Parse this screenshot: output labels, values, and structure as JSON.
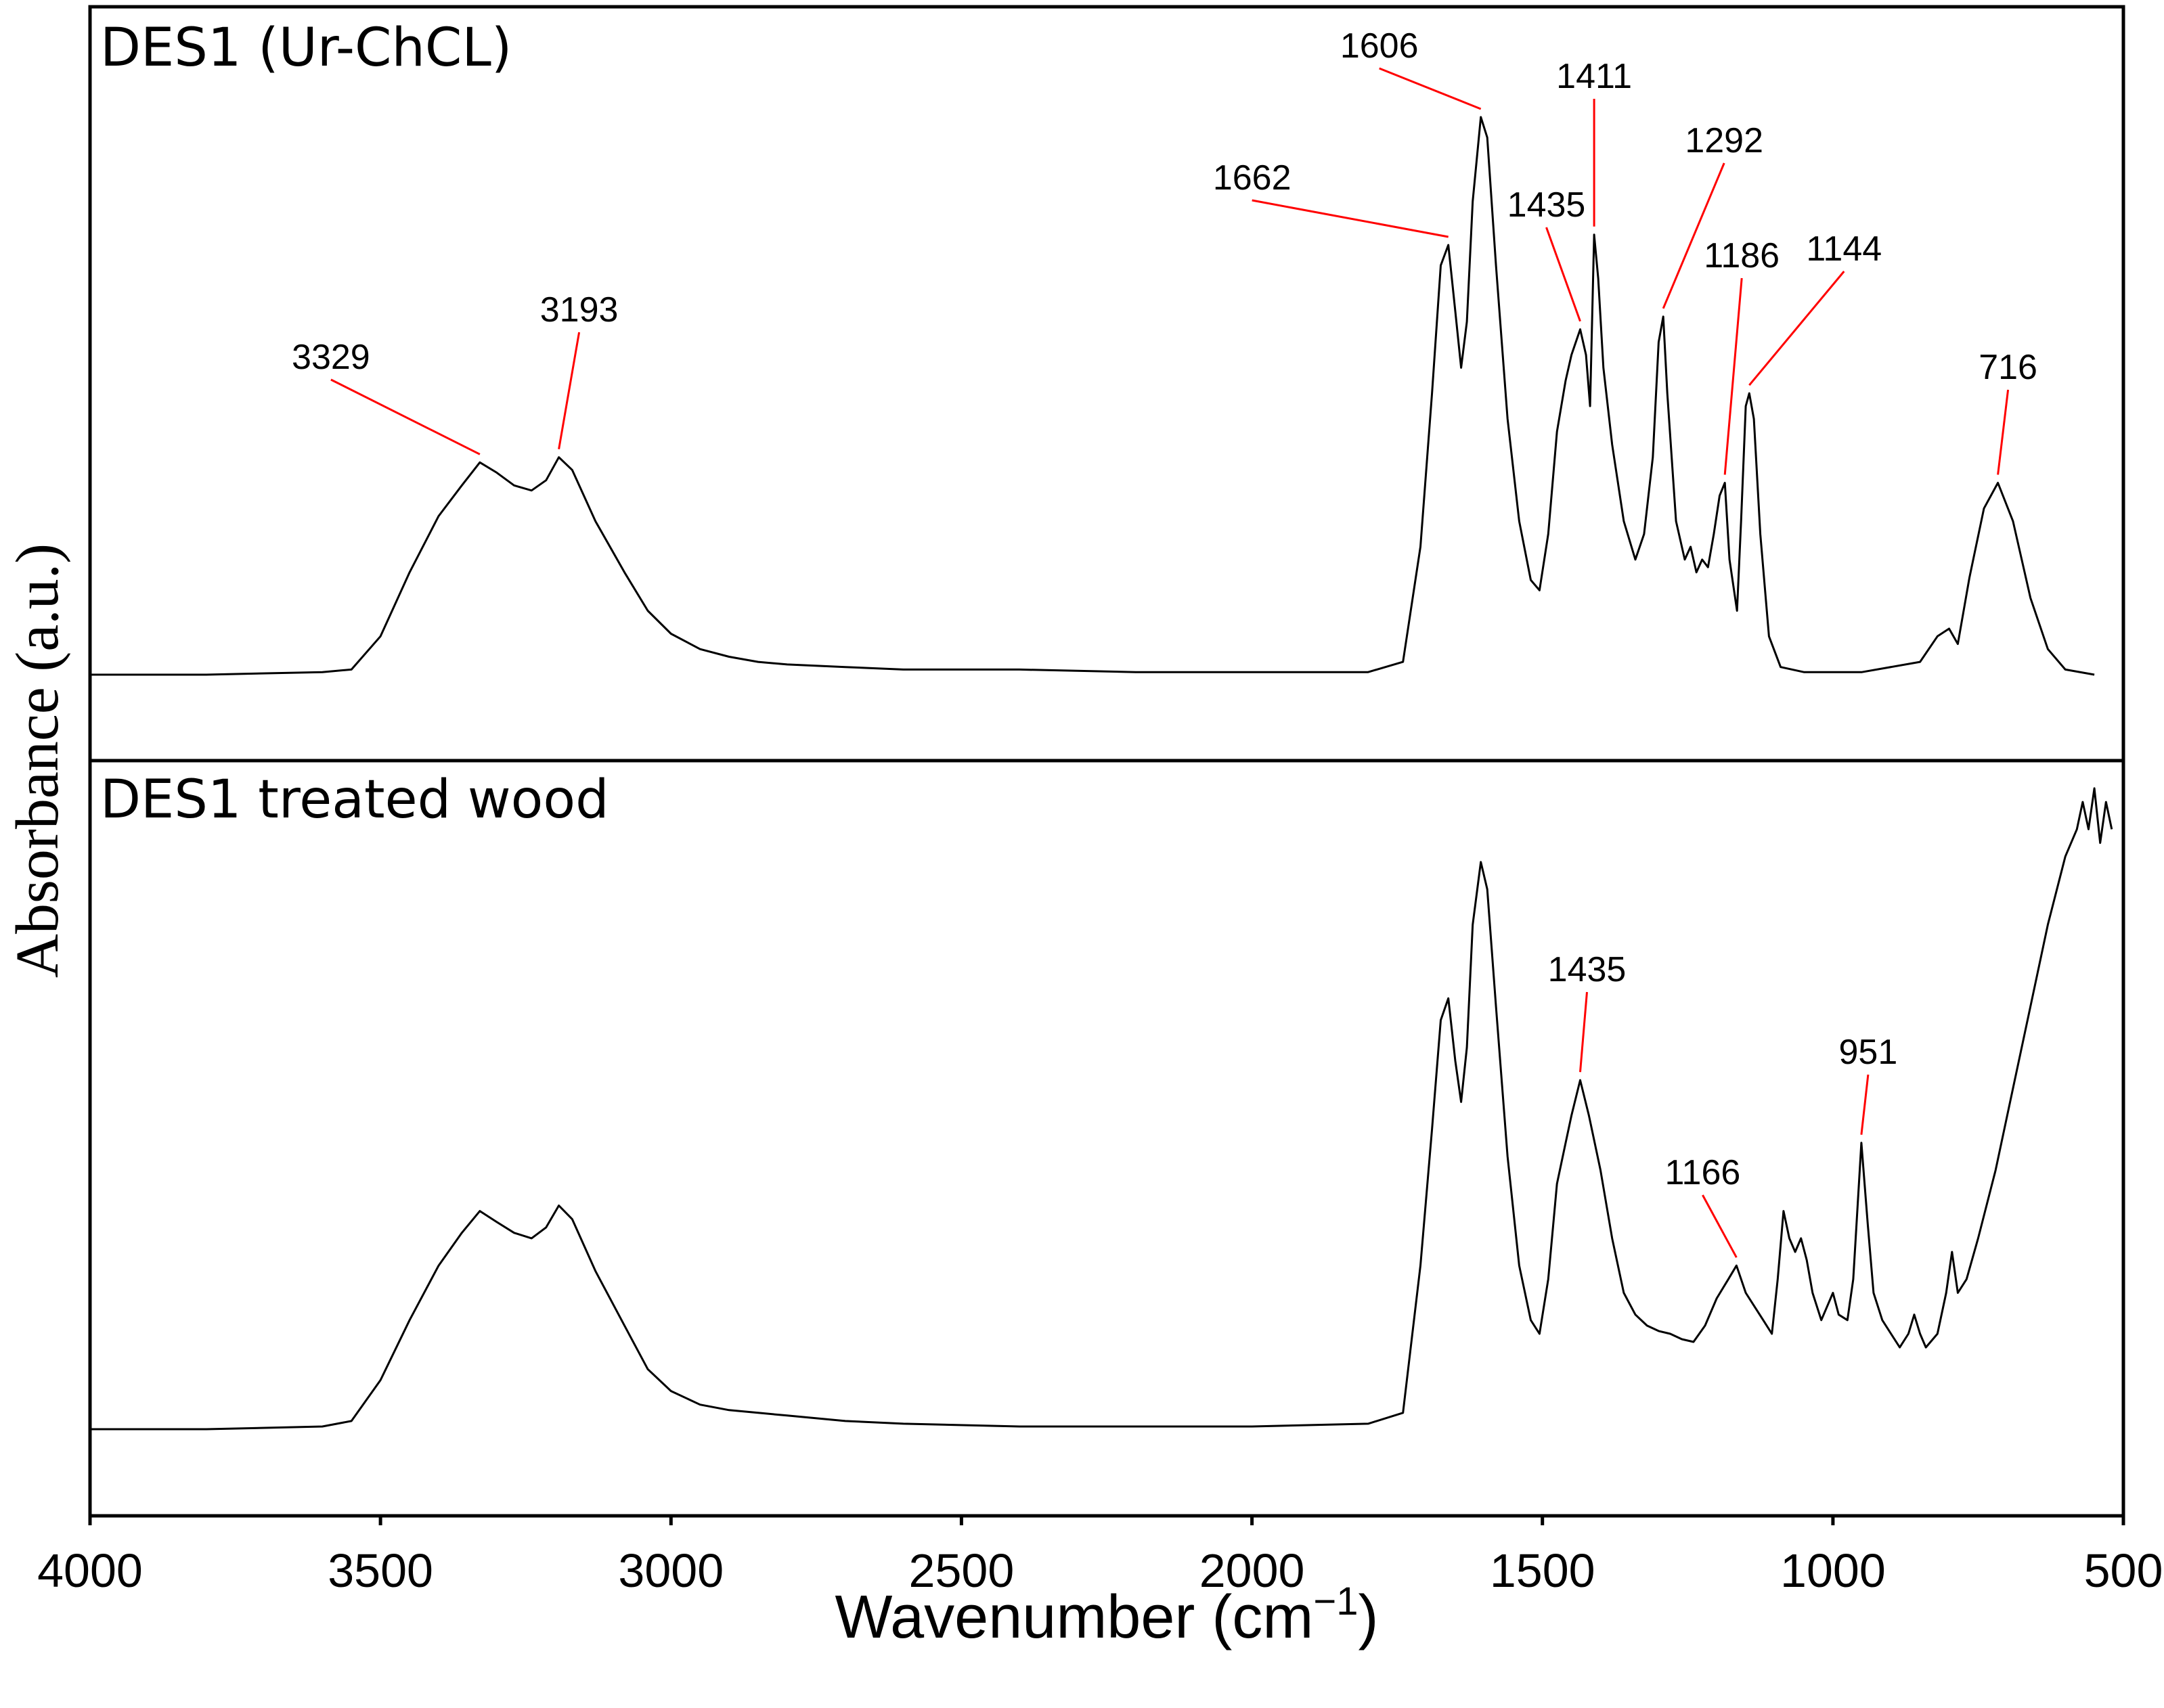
{
  "chart_data": {
    "type": "line",
    "xlabel": "Wavenumber (cm",
    "xlabel_sup": "−1",
    "xlabel_end": ")",
    "ylabel": "Absorbance (a.u.)",
    "xlim": [
      4000,
      500
    ],
    "x_ticks": [
      4000,
      3500,
      3000,
      2500,
      2000,
      1500,
      1000,
      500
    ],
    "x_reversed": true,
    "grid": false,
    "panels": [
      {
        "title": "DES1 (Ur-ChCL)",
        "series": [
          {
            "points": [
              [
                4000,
                0.0
              ],
              [
                3800,
                0.0
              ],
              [
                3600,
                0.01
              ],
              [
                3550,
                0.02
              ],
              [
                3500,
                0.15
              ],
              [
                3450,
                0.4
              ],
              [
                3400,
                0.62
              ],
              [
                3360,
                0.74
              ],
              [
                3329,
                0.83
              ],
              [
                3300,
                0.79
              ],
              [
                3270,
                0.74
              ],
              [
                3240,
                0.72
              ],
              [
                3215,
                0.76
              ],
              [
                3193,
                0.85
              ],
              [
                3170,
                0.8
              ],
              [
                3130,
                0.6
              ],
              [
                3080,
                0.4
              ],
              [
                3040,
                0.25
              ],
              [
                3000,
                0.16
              ],
              [
                2950,
                0.1
              ],
              [
                2900,
                0.07
              ],
              [
                2850,
                0.05
              ],
              [
                2800,
                0.04
              ],
              [
                2700,
                0.03
              ],
              [
                2600,
                0.02
              ],
              [
                2400,
                0.02
              ],
              [
                2200,
                0.01
              ],
              [
                2000,
                0.01
              ],
              [
                1800,
                0.01
              ],
              [
                1740,
                0.05
              ],
              [
                1710,
                0.5
              ],
              [
                1690,
                1.1
              ],
              [
                1675,
                1.6
              ],
              [
                1662,
                1.68
              ],
              [
                1650,
                1.42
              ],
              [
                1640,
                1.2
              ],
              [
                1630,
                1.38
              ],
              [
                1620,
                1.85
              ],
              [
                1606,
                2.18
              ],
              [
                1595,
                2.1
              ],
              [
                1580,
                1.6
              ],
              [
                1560,
                1.0
              ],
              [
                1540,
                0.6
              ],
              [
                1520,
                0.37
              ],
              [
                1505,
                0.33
              ],
              [
                1490,
                0.55
              ],
              [
                1475,
                0.95
              ],
              [
                1460,
                1.15
              ],
              [
                1450,
                1.25
              ],
              [
                1435,
                1.35
              ],
              [
                1425,
                1.25
              ],
              [
                1418,
                1.05
              ],
              [
                1411,
                1.72
              ],
              [
                1404,
                1.55
              ],
              [
                1395,
                1.2
              ],
              [
                1380,
                0.9
              ],
              [
                1360,
                0.6
              ],
              [
                1340,
                0.45
              ],
              [
                1325,
                0.55
              ],
              [
                1310,
                0.85
              ],
              [
                1300,
                1.3
              ],
              [
                1292,
                1.4
              ],
              [
                1285,
                1.1
              ],
              [
                1270,
                0.6
              ],
              [
                1255,
                0.45
              ],
              [
                1245,
                0.5
              ],
              [
                1235,
                0.4
              ],
              [
                1225,
                0.45
              ],
              [
                1215,
                0.42
              ],
              [
                1205,
                0.55
              ],
              [
                1195,
                0.7
              ],
              [
                1186,
                0.75
              ],
              [
                1178,
                0.45
              ],
              [
                1165,
                0.25
              ],
              [
                1158,
                0.6
              ],
              [
                1150,
                1.05
              ],
              [
                1144,
                1.1
              ],
              [
                1136,
                1.0
              ],
              [
                1125,
                0.55
              ],
              [
                1110,
                0.15
              ],
              [
                1090,
                0.03
              ],
              [
                1050,
                0.01
              ],
              [
                950,
                0.01
              ],
              [
                850,
                0.05
              ],
              [
                820,
                0.15
              ],
              [
                800,
                0.18
              ],
              [
                785,
                0.12
              ],
              [
                765,
                0.38
              ],
              [
                740,
                0.65
              ],
              [
                716,
                0.75
              ],
              [
                690,
                0.6
              ],
              [
                660,
                0.3
              ],
              [
                630,
                0.1
              ],
              [
                600,
                0.02
              ],
              [
                550,
                0.0
              ]
            ]
          }
        ],
        "annotations": [
          {
            "text": "3329",
            "x": 3329
          },
          {
            "text": "3193",
            "x": 3193
          },
          {
            "text": "1662",
            "x": 1662
          },
          {
            "text": "1606",
            "x": 1606
          },
          {
            "text": "1435",
            "x": 1435
          },
          {
            "text": "1411",
            "x": 1411
          },
          {
            "text": "1292",
            "x": 1292
          },
          {
            "text": "1186",
            "x": 1186
          },
          {
            "text": "1144",
            "x": 1144
          },
          {
            "text": "716",
            "x": 716
          }
        ]
      },
      {
        "title": "DES1 treated wood",
        "series": [
          {
            "points": [
              [
                4000,
                0.0
              ],
              [
                3800,
                0.0
              ],
              [
                3600,
                0.01
              ],
              [
                3550,
                0.03
              ],
              [
                3500,
                0.18
              ],
              [
                3450,
                0.4
              ],
              [
                3400,
                0.6
              ],
              [
                3360,
                0.72
              ],
              [
                3329,
                0.8
              ],
              [
                3300,
                0.76
              ],
              [
                3270,
                0.72
              ],
              [
                3240,
                0.7
              ],
              [
                3215,
                0.74
              ],
              [
                3193,
                0.82
              ],
              [
                3170,
                0.77
              ],
              [
                3130,
                0.58
              ],
              [
                3080,
                0.38
              ],
              [
                3040,
                0.22
              ],
              [
                3000,
                0.14
              ],
              [
                2950,
                0.09
              ],
              [
                2900,
                0.07
              ],
              [
                2850,
                0.06
              ],
              [
                2800,
                0.05
              ],
              [
                2700,
                0.03
              ],
              [
                2600,
                0.02
              ],
              [
                2400,
                0.01
              ],
              [
                2200,
                0.01
              ],
              [
                2000,
                0.01
              ],
              [
                1800,
                0.02
              ],
              [
                1740,
                0.06
              ],
              [
                1710,
                0.6
              ],
              [
                1690,
                1.1
              ],
              [
                1675,
                1.5
              ],
              [
                1662,
                1.58
              ],
              [
                1650,
                1.35
              ],
              [
                1640,
                1.2
              ],
              [
                1630,
                1.4
              ],
              [
                1620,
                1.85
              ],
              [
                1606,
                2.08
              ],
              [
                1595,
                1.98
              ],
              [
                1580,
                1.55
              ],
              [
                1560,
                1.0
              ],
              [
                1540,
                0.6
              ],
              [
                1520,
                0.4
              ],
              [
                1505,
                0.35
              ],
              [
                1490,
                0.55
              ],
              [
                1475,
                0.9
              ],
              [
                1460,
                1.05
              ],
              [
                1450,
                1.15
              ],
              [
                1435,
                1.28
              ],
              [
                1420,
                1.15
              ],
              [
                1400,
                0.95
              ],
              [
                1380,
                0.7
              ],
              [
                1360,
                0.5
              ],
              [
                1340,
                0.42
              ],
              [
                1320,
                0.38
              ],
              [
                1300,
                0.36
              ],
              [
                1280,
                0.35
              ],
              [
                1260,
                0.33
              ],
              [
                1240,
                0.32
              ],
              [
                1220,
                0.38
              ],
              [
                1200,
                0.48
              ],
              [
                1180,
                0.55
              ],
              [
                1166,
                0.6
              ],
              [
                1150,
                0.5
              ],
              [
                1135,
                0.45
              ],
              [
                1120,
                0.4
              ],
              [
                1105,
                0.35
              ],
              [
                1095,
                0.55
              ],
              [
                1085,
                0.8
              ],
              [
                1075,
                0.7
              ],
              [
                1065,
                0.65
              ],
              [
                1055,
                0.7
              ],
              [
                1045,
                0.62
              ],
              [
                1035,
                0.5
              ],
              [
                1020,
                0.4
              ],
              [
                1010,
                0.45
              ],
              [
                1000,
                0.5
              ],
              [
                990,
                0.42
              ],
              [
                975,
                0.4
              ],
              [
                965,
                0.55
              ],
              [
                951,
                1.05
              ],
              [
                940,
                0.75
              ],
              [
                930,
                0.5
              ],
              [
                915,
                0.4
              ],
              [
                900,
                0.35
              ],
              [
                885,
                0.3
              ],
              [
                870,
                0.35
              ],
              [
                860,
                0.42
              ],
              [
                850,
                0.35
              ],
              [
                840,
                0.3
              ],
              [
                820,
                0.35
              ],
              [
                805,
                0.5
              ],
              [
                795,
                0.65
              ],
              [
                785,
                0.5
              ],
              [
                770,
                0.55
              ],
              [
                750,
                0.7
              ],
              [
                720,
                0.95
              ],
              [
                690,
                1.25
              ],
              [
                660,
                1.55
              ],
              [
                630,
                1.85
              ],
              [
                600,
                2.1
              ],
              [
                580,
                2.2
              ],
              [
                570,
                2.3
              ],
              [
                560,
                2.2
              ],
              [
                550,
                2.35
              ],
              [
                540,
                2.15
              ],
              [
                530,
                2.3
              ],
              [
                520,
                2.2
              ]
            ]
          }
        ],
        "annotations": [
          {
            "text": "1435",
            "x": 1435
          },
          {
            "text": "1166",
            "x": 1166
          },
          {
            "text": "951",
            "x": 951
          }
        ]
      }
    ]
  }
}
